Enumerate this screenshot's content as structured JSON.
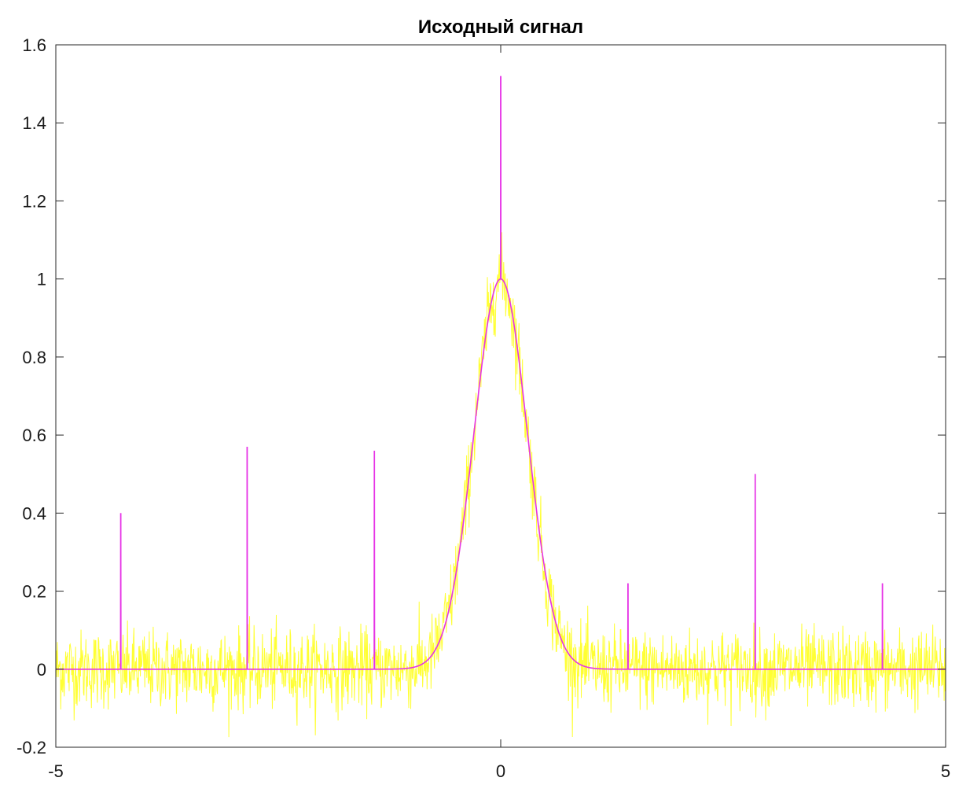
{
  "chart_data": {
    "type": "line",
    "title": "Исходный сигнал",
    "xlabel": "",
    "ylabel": "",
    "xlim": [
      -5,
      5
    ],
    "ylim": [
      -0.2,
      1.6
    ],
    "grid": false,
    "x_ticks": [
      -5,
      0,
      5
    ],
    "x_tick_labels": [
      "-5",
      "0",
      "5"
    ],
    "y_ticks": [
      -0.2,
      0,
      0.2,
      0.4,
      0.6,
      0.8,
      1,
      1.2,
      1.4,
      1.6
    ],
    "y_tick_labels": [
      "-0.2",
      "0",
      "0.2",
      "0.4",
      "0.6",
      "0.8",
      "1",
      "1.2",
      "1.4",
      "1.6"
    ],
    "series": [
      {
        "role": "noisy-signal",
        "color": "#ffff33",
        "base": "gaussian",
        "gaussian_center": 0,
        "gaussian_sigma": 0.3,
        "gaussian_amplitude": 1,
        "noise_amplitude_approx": 0.05
      },
      {
        "role": "clean-signal",
        "color": "#e633e6",
        "base": "gaussian",
        "gaussian_center": 0,
        "gaussian_sigma": 0.3,
        "gaussian_amplitude": 1,
        "impulses": [
          {
            "x": -4.27,
            "y": 0.4
          },
          {
            "x": -2.85,
            "y": 0.57
          },
          {
            "x": -1.42,
            "y": 0.56
          },
          {
            "x": 0.0,
            "y": 1.52
          },
          {
            "x": 1.43,
            "y": 0.22
          },
          {
            "x": 2.86,
            "y": 0.5
          },
          {
            "x": 4.29,
            "y": 0.22
          }
        ]
      }
    ]
  }
}
